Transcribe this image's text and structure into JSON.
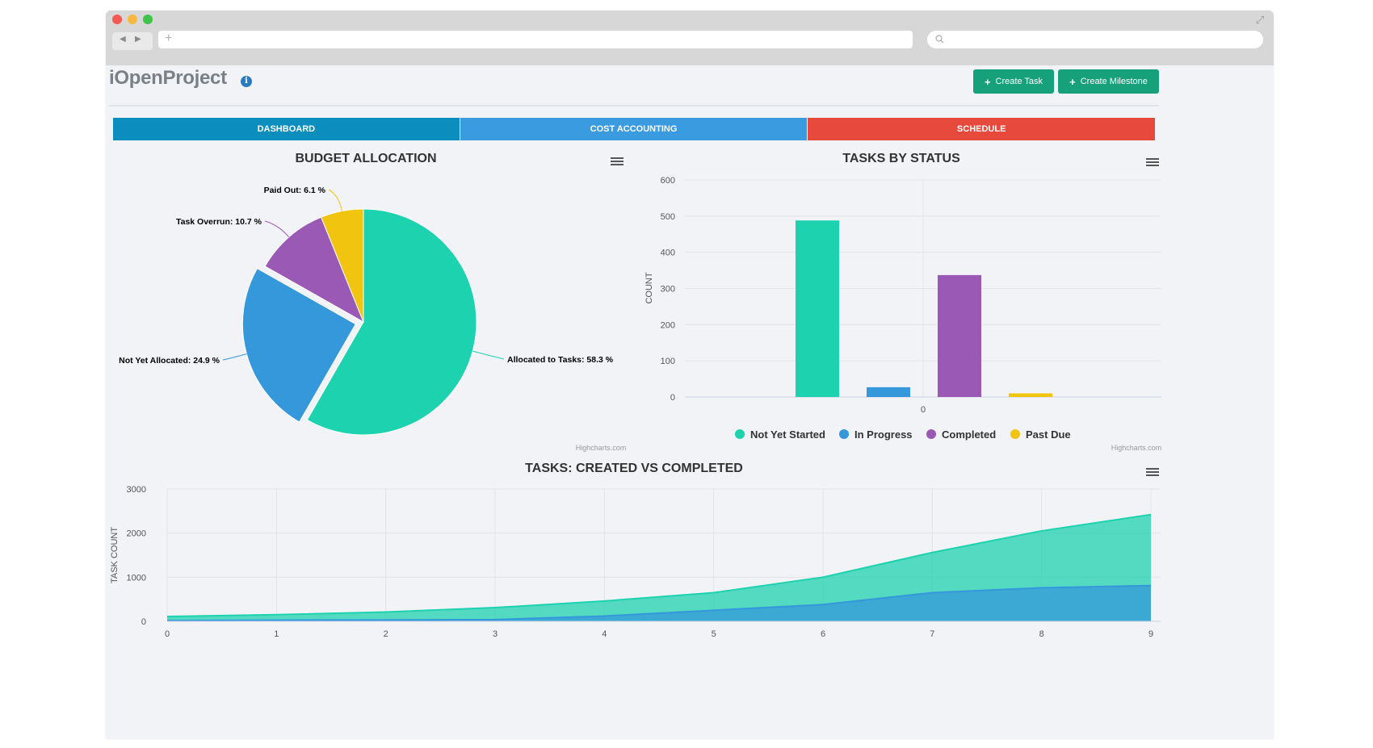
{
  "app": {
    "title": "iOpenProject",
    "create_task_label": "Create Task",
    "create_milestone_label": "Create Milestone"
  },
  "tabs": [
    {
      "label": "DASHBOARD",
      "color": "#0b8dbd"
    },
    {
      "label": "COST ACCOUNTING",
      "color": "#3a9be0"
    },
    {
      "label": "SCHEDULE",
      "color": "#e7493d"
    }
  ],
  "credits": "Highcharts.com",
  "chart_data": [
    {
      "type": "pie",
      "title": "BUDGET ALLOCATION",
      "slices": [
        {
          "label": "Allocated to Tasks",
          "value": 58.3,
          "color": "#1dd2ae",
          "display": "Allocated to Tasks: 58.3 %"
        },
        {
          "label": "Not Yet Allocated",
          "value": 24.9,
          "color": "#3498db",
          "display": "Not Yet Allocated: 24.9 %"
        },
        {
          "label": "Task Overrun",
          "value": 10.7,
          "color": "#9b59b6",
          "display": "Task Overrun: 10.7 %"
        },
        {
          "label": "Paid Out",
          "value": 6.1,
          "color": "#f1c40f",
          "display": "Paid Out: 6.1 %"
        }
      ]
    },
    {
      "type": "bar",
      "title": "TASKS BY STATUS",
      "ylabel": "COUNT",
      "ylim": [
        0,
        600
      ],
      "yticks": [
        "0",
        "100",
        "200",
        "300",
        "400",
        "500",
        "600"
      ],
      "categories": [
        "0"
      ],
      "legend_position": "bottom",
      "series": [
        {
          "name": "Not Yet Started",
          "values": [
            488
          ],
          "color": "#1dd2ae"
        },
        {
          "name": "In Progress",
          "values": [
            27
          ],
          "color": "#3498db"
        },
        {
          "name": "Completed",
          "values": [
            337
          ],
          "color": "#9b59b6"
        },
        {
          "name": "Past Due",
          "values": [
            10
          ],
          "color": "#f1c40f"
        }
      ]
    },
    {
      "type": "area",
      "title": "TASKS: CREATED VS COMPLETED",
      "ylabel": "TASK COUNT",
      "ylim": [
        0,
        3000
      ],
      "yticks": [
        "0",
        "1000",
        "2000",
        "3000"
      ],
      "x": [
        "0",
        "1",
        "2",
        "3",
        "4",
        "5",
        "6",
        "7",
        "8",
        "9"
      ],
      "series": [
        {
          "values": [
            110,
            150,
            210,
            310,
            460,
            650,
            1000,
            1560,
            2050,
            2420
          ],
          "color": "#1dd2ae"
        },
        {
          "values": [
            15,
            25,
            30,
            40,
            120,
            250,
            380,
            650,
            760,
            810
          ],
          "color": "#3498db"
        }
      ]
    }
  ]
}
